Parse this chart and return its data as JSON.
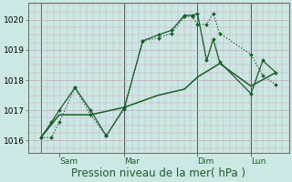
{
  "bg_color": "#cce8e4",
  "grid_major_color": "#c8a0b8",
  "grid_minor_color": "#c8a0b8",
  "line_color": "#1a5c2a",
  "ylim": [
    1015.6,
    1020.55
  ],
  "yticks": [
    1016,
    1017,
    1018,
    1019,
    1020
  ],
  "xlabel": "Pression niveau de la mer( hPa )",
  "xlabel_fontsize": 8.5,
  "tick_fontsize": 6.5,
  "xtick_labels": [
    "Sam",
    "Mar",
    "Dim",
    "Lun"
  ],
  "xtick_positions": [
    0.12,
    0.37,
    0.65,
    0.855
  ],
  "day_vlines": [
    0.05,
    0.37,
    0.65,
    0.855
  ],
  "figsize": [
    3.2,
    2.0
  ],
  "dpi": 100,
  "line1_x": [
    0.05,
    0.09,
    0.12,
    0.18,
    0.24,
    0.3,
    0.37,
    0.44,
    0.5,
    0.55,
    0.6,
    0.63,
    0.65,
    0.685,
    0.71,
    0.735,
    0.855,
    0.9,
    0.95
  ],
  "line1_y": [
    1016.1,
    1016.1,
    1016.6,
    1017.75,
    1016.85,
    1016.15,
    1017.05,
    1019.3,
    1019.4,
    1019.55,
    1020.1,
    1020.1,
    1019.85,
    1019.85,
    1020.2,
    1019.55,
    1018.85,
    1018.15,
    1017.85
  ],
  "line2_x": [
    0.05,
    0.09,
    0.12,
    0.18,
    0.24,
    0.3,
    0.37,
    0.44,
    0.5,
    0.55,
    0.6,
    0.63,
    0.65,
    0.685,
    0.71,
    0.735,
    0.855,
    0.9,
    0.95
  ],
  "line2_y": [
    1016.1,
    1016.6,
    1017.0,
    1017.75,
    1017.0,
    1016.15,
    1017.1,
    1019.3,
    1019.5,
    1019.65,
    1020.15,
    1020.15,
    1020.2,
    1018.65,
    1019.35,
    1018.6,
    1017.55,
    1018.65,
    1018.25
  ],
  "line3_x": [
    0.05,
    0.12,
    0.24,
    0.37,
    0.5,
    0.6,
    0.65,
    0.735,
    0.855,
    0.95
  ],
  "line3_y": [
    1016.1,
    1016.85,
    1016.85,
    1017.1,
    1017.5,
    1017.7,
    1018.1,
    1018.55,
    1017.8,
    1018.25
  ]
}
